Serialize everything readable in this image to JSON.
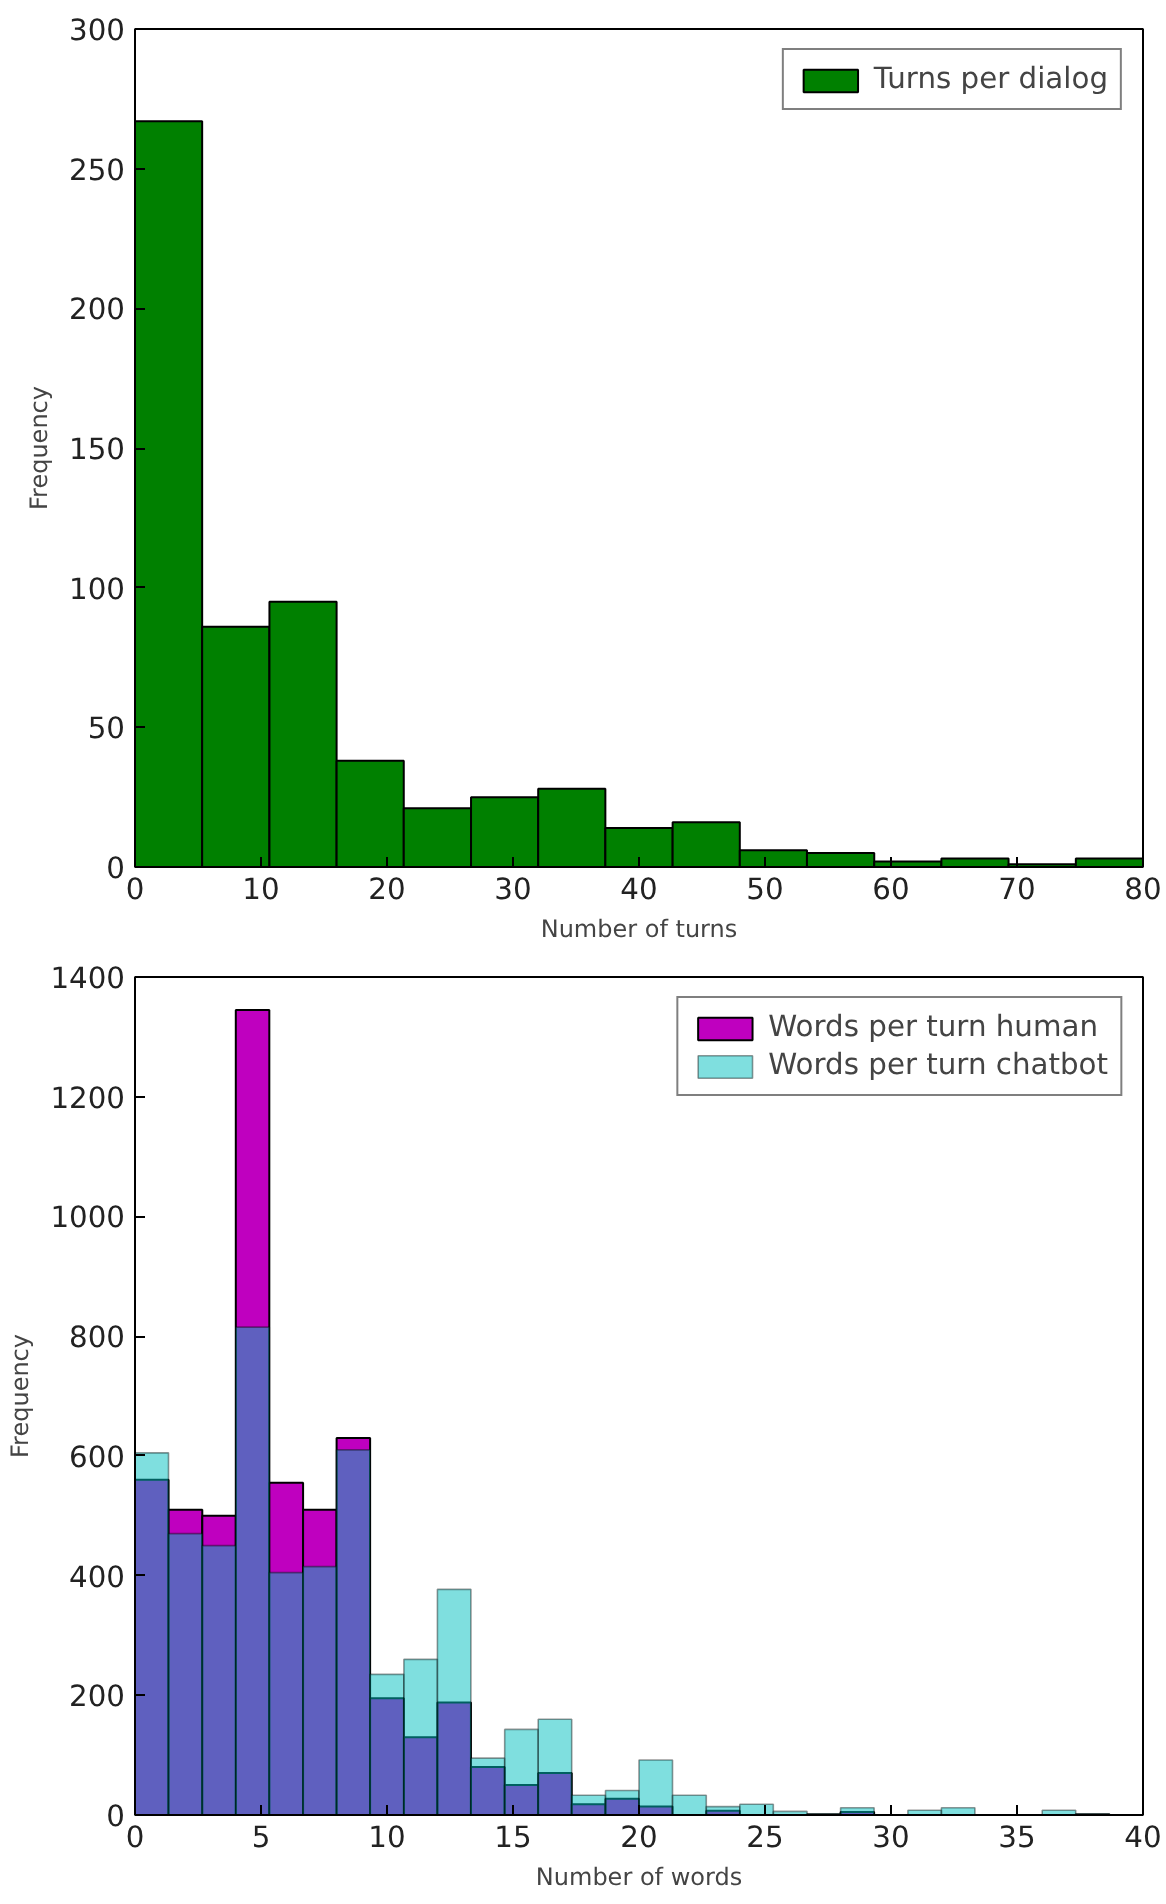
{
  "chart_data": [
    {
      "type": "histogram",
      "xlabel": "Number of turns",
      "ylabel": "Frequency",
      "bins": [
        0,
        5.33,
        10.67,
        16,
        21.33,
        26.67,
        32,
        37.33,
        42.67,
        48,
        53.33,
        58.67,
        64,
        69.33,
        74.67,
        80
      ],
      "series": [
        {
          "name": "Turns per dialog",
          "color": "#008000",
          "values": [
            267,
            86,
            95,
            38,
            21,
            25,
            28,
            14,
            16,
            6,
            5,
            2,
            3,
            1,
            3
          ]
        }
      ],
      "xlim": [
        0,
        80
      ],
      "xticks": [
        0,
        10,
        20,
        30,
        40,
        50,
        60,
        70,
        80
      ],
      "ylim": [
        0,
        300
      ],
      "yticks": [
        0,
        50,
        100,
        150,
        200,
        250,
        300
      ],
      "grid": false,
      "legend": "top right"
    },
    {
      "type": "histogram",
      "xlabel": "Number of words",
      "ylabel": "Frequency",
      "bins": [
        0,
        1.33,
        2.67,
        4,
        5.33,
        6.67,
        8,
        9.33,
        10.67,
        12,
        13.33,
        14.67,
        16,
        17.33,
        18.67,
        20,
        21.33,
        22.67,
        24,
        25.33,
        26.67,
        28,
        29.33,
        30.67,
        32,
        33.33,
        34.67,
        36,
        37.33,
        38.67
      ],
      "series": [
        {
          "name": "Words per turn human",
          "color": "#bf00bf",
          "values": [
            560,
            510,
            500,
            1345,
            555,
            510,
            630,
            195,
            130,
            188,
            80,
            50,
            70,
            18,
            27,
            14,
            null,
            7,
            null,
            null,
            1,
            5,
            0,
            0,
            0,
            0,
            0,
            0,
            1
          ]
        },
        {
          "name": "Words per turn chatbot",
          "color": "#00bfbf",
          "values": [
            605,
            470,
            450,
            815,
            405,
            415,
            610,
            235,
            260,
            377,
            95,
            143,
            160,
            33,
            41,
            92,
            33,
            14,
            18,
            6,
            2,
            12,
            0,
            8,
            12,
            0,
            0,
            8,
            2
          ]
        }
      ],
      "xlim": [
        0,
        40
      ],
      "xticks": [
        0,
        5,
        10,
        15,
        20,
        25,
        30,
        35,
        40
      ],
      "ylim": [
        0,
        1400
      ],
      "yticks": [
        0,
        200,
        400,
        600,
        800,
        1000,
        1200,
        1400
      ],
      "grid": false,
      "legend": "top right"
    }
  ]
}
